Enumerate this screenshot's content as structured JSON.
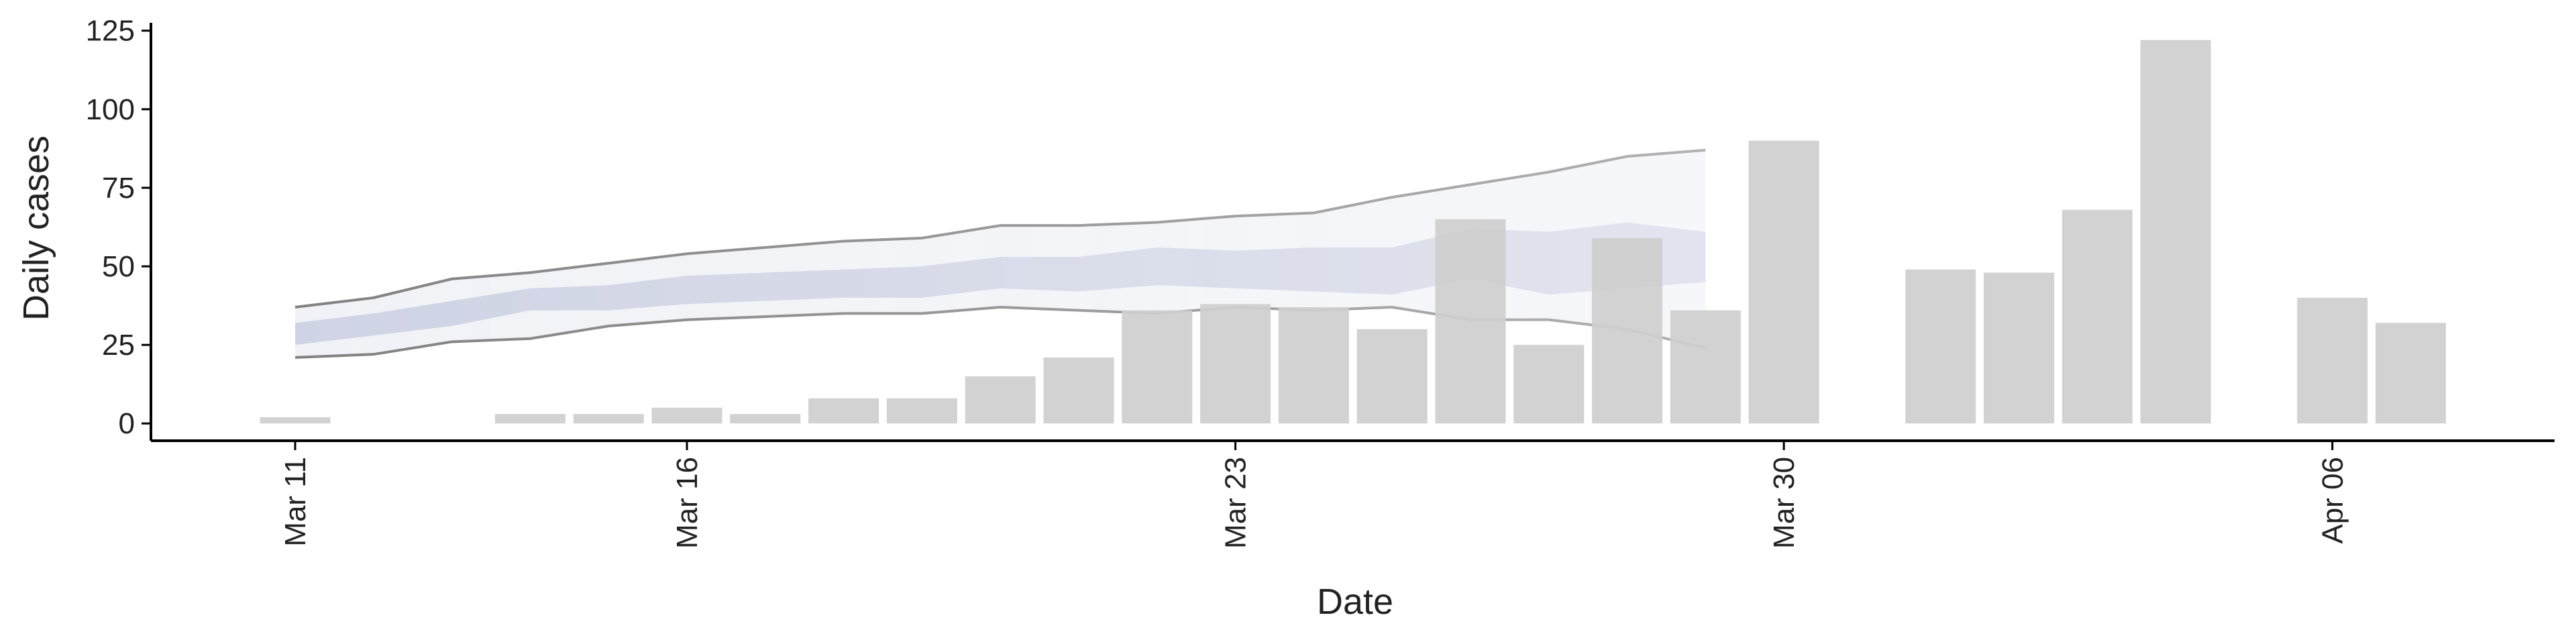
{
  "chart_data": {
    "type": "bar",
    "xlabel": "Date",
    "ylabel": "Daily cases",
    "categories": [
      "Mar 11",
      null,
      null,
      null,
      null,
      "Mar 16",
      null,
      null,
      null,
      null,
      null,
      null,
      "Mar 23",
      null,
      null,
      null,
      null,
      null,
      null,
      "Mar 30",
      null,
      null,
      null,
      null,
      null,
      null,
      "Apr 06",
      null
    ],
    "values": [
      2,
      null,
      null,
      3,
      3,
      5,
      3,
      8,
      8,
      15,
      21,
      36,
      38,
      37,
      30,
      65,
      25,
      59,
      36,
      90,
      null,
      49,
      48,
      68,
      122,
      null,
      40,
      32
    ],
    "color": "#cecece",
    "forecast": {
      "outer": {
        "color": "#eceef4",
        "lower": [
          21,
          22,
          26,
          27,
          31,
          33,
          34,
          35,
          35,
          37,
          36,
          35,
          37,
          36,
          37,
          33,
          33,
          30,
          24,
          null,
          null,
          null,
          null,
          null,
          null,
          null,
          null,
          null
        ],
        "upper": [
          37,
          40,
          46,
          48,
          51,
          54,
          56,
          58,
          59,
          63,
          63,
          64,
          66,
          67,
          72,
          76,
          80,
          85,
          87,
          null,
          null,
          null,
          null,
          null,
          null,
          null,
          null,
          null
        ]
      },
      "inner": {
        "color": "#c6cbdf",
        "lower": [
          25,
          28,
          31,
          36,
          36,
          38,
          39,
          40,
          40,
          43,
          42,
          44,
          43,
          42,
          41,
          46,
          41,
          43,
          45,
          null,
          null,
          null,
          null,
          null,
          null,
          null,
          null,
          null
        ],
        "upper": [
          32,
          35,
          39,
          43,
          44,
          47,
          48,
          49,
          50,
          53,
          53,
          56,
          55,
          56,
          56,
          62,
          61,
          64,
          61,
          null,
          null,
          null,
          null,
          null,
          null,
          null,
          null,
          null
        ]
      },
      "line_color": "#777777"
    },
    "ylim": [
      -5.5,
      127.5
    ],
    "yticks": [
      0,
      25,
      50,
      75,
      100,
      125
    ]
  }
}
